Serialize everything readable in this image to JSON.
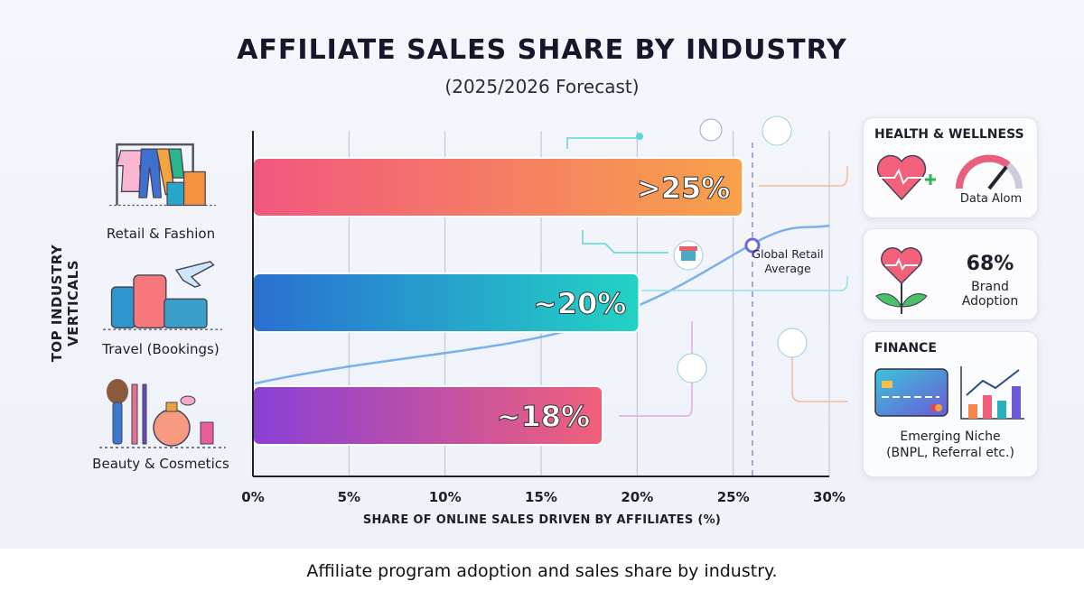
{
  "title": "AFFILIATE SALES SHARE BY INDUSTRY",
  "subtitle": "(2025/2026 Forecast)",
  "caption": "Affiliate program adoption and sales share by industry.",
  "chart_data": {
    "type": "bar",
    "orientation": "horizontal",
    "title": "AFFILIATE SALES SHARE BY INDUSTRY",
    "subtitle": "(2025/2026 Forecast)",
    "xlabel": "SHARE OF ONLINE SALES DRIVEN BY AFFILIATES (%)",
    "ylabel": "TOP INDUSTRY VERTICALS",
    "xlim": [
      0,
      30
    ],
    "xticks": [
      "0%",
      "5%",
      "10%",
      "15%",
      "20%",
      "25%",
      "30%"
    ],
    "grid": "vertical",
    "categories": [
      "Retail & Fashion",
      "Travel (Bookings)",
      "Beauty & Cosmetics"
    ],
    "values": [
      25.5,
      20.1,
      18.2
    ],
    "data_labels": [
      ">25%",
      "~20%",
      "~18%"
    ],
    "bar_colors": [
      [
        "#f2577f",
        "#f7a24a"
      ],
      [
        "#2a6fd1",
        "#22d3c5"
      ],
      [
        "#8a3fd6",
        "#f0607a"
      ]
    ],
    "reference_line": {
      "label": "Global Retail Average",
      "value": 26,
      "style": "dashed"
    }
  },
  "side_panels": {
    "health": {
      "title": "HEALTH & WELLNESS",
      "gauge_label": "Data Alom"
    },
    "adoption": {
      "value": "68%",
      "label1": "Brand",
      "label2": "Adoption"
    },
    "finance": {
      "title": "FINANCE",
      "label1": "Emerging Niche",
      "label2": "(BNPL, Referral etc.)"
    }
  }
}
